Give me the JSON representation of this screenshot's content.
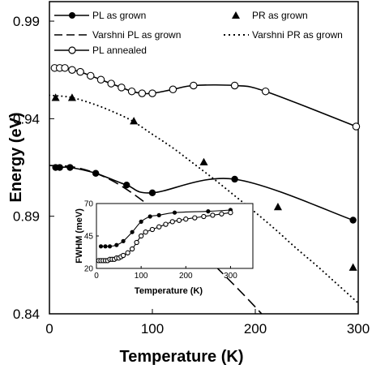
{
  "chart_data": [
    {
      "type": "line",
      "xlabel": "Temperature (K)",
      "ylabel": "Energy (eV)",
      "xlim": [
        0,
        300
      ],
      "ylim": [
        0.84,
        1.0
      ],
      "xticks": [
        0,
        100,
        200,
        300
      ],
      "yticks": [
        0.84,
        0.89,
        0.94,
        0.99
      ],
      "grid": false,
      "legend": "top",
      "series": [
        {
          "name": "PL as grown",
          "style": "line-filled-circles",
          "x": [
            6,
            10,
            20,
            45,
            75,
            100,
            180,
            295
          ],
          "y": [
            0.915,
            0.915,
            0.915,
            0.912,
            0.906,
            0.902,
            0.909,
            0.888
          ]
        },
        {
          "name": "PR as grown",
          "style": "triangles",
          "x": [
            6,
            22,
            82,
            150,
            222,
            295
          ],
          "y": [
            0.951,
            0.951,
            0.939,
            0.918,
            0.895,
            0.864
          ]
        },
        {
          "name": "Varshni PL as grown",
          "style": "dashed",
          "x": [
            0,
            20,
            40,
            60,
            80,
            100,
            120,
            140,
            160,
            180,
            200,
            220,
            240
          ],
          "y": [
            0.916,
            0.9155,
            0.913,
            0.9085,
            0.902,
            0.894,
            0.885,
            0.8755,
            0.865,
            0.8545,
            0.8435,
            0.832,
            0.8205
          ]
        },
        {
          "name": "Varshni PR as grown",
          "style": "dotted",
          "x": [
            0,
            20,
            40,
            60,
            80,
            100,
            120,
            140,
            160,
            180,
            200,
            220,
            240,
            260,
            280,
            300
          ],
          "y": [
            0.952,
            0.951,
            0.948,
            0.944,
            0.939,
            0.932,
            0.925,
            0.917,
            0.909,
            0.9005,
            0.892,
            0.883,
            0.8735,
            0.8645,
            0.855,
            0.8455
          ]
        },
        {
          "name": "PL annealed",
          "style": "line-open-circles",
          "x": [
            5,
            10,
            15,
            22,
            30,
            40,
            50,
            60,
            70,
            80,
            90,
            100,
            120,
            140,
            180,
            210,
            298
          ],
          "y": [
            0.966,
            0.966,
            0.966,
            0.965,
            0.964,
            0.962,
            0.96,
            0.958,
            0.956,
            0.954,
            0.953,
            0.953,
            0.955,
            0.957,
            0.957,
            0.954,
            0.936
          ]
        }
      ]
    },
    {
      "type": "line",
      "inset": true,
      "xlabel": "Temperature (K)",
      "ylabel": "FWHM (meV)",
      "xlim": [
        0,
        350
      ],
      "ylim": [
        20,
        70
      ],
      "xticks": [
        0,
        100,
        200,
        300
      ],
      "yticks": [
        20,
        45,
        70
      ],
      "series": [
        {
          "style": "line-filled-circles",
          "x": [
            10,
            20,
            30,
            45,
            60,
            80,
            100,
            120,
            140,
            175,
            250,
            300
          ],
          "y": [
            37,
            37,
            37,
            38,
            41,
            48,
            56,
            60,
            61,
            63,
            64,
            65
          ]
        },
        {
          "style": "line-open-circles",
          "x": [
            5,
            10,
            15,
            20,
            25,
            30,
            35,
            40,
            45,
            50,
            55,
            60,
            70,
            80,
            90,
            100,
            110,
            125,
            140,
            155,
            170,
            185,
            200,
            220,
            240,
            260,
            280,
            300
          ],
          "y": [
            26,
            26,
            26,
            26,
            26,
            27,
            27,
            27,
            28,
            28,
            29,
            30,
            32,
            35,
            40,
            45,
            48,
            50,
            52,
            54,
            56,
            57,
            58,
            59,
            60,
            61,
            62,
            63
          ]
        }
      ]
    }
  ]
}
